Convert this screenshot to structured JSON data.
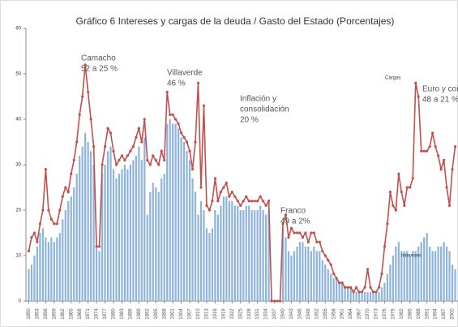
{
  "chart_data": {
    "type": "bar-line",
    "title": "Gráfico 6 Intereses y cargas de la deuda / Gasto del Estado (Porcentajes)",
    "x": [
      1850,
      1851,
      1852,
      1853,
      1854,
      1855,
      1856,
      1857,
      1858,
      1859,
      1860,
      1861,
      1862,
      1863,
      1864,
      1865,
      1866,
      1867,
      1868,
      1869,
      1870,
      1871,
      1872,
      1873,
      1874,
      1875,
      1876,
      1877,
      1878,
      1879,
      1880,
      1881,
      1882,
      1883,
      1884,
      1885,
      1886,
      1887,
      1888,
      1889,
      1890,
      1891,
      1892,
      1893,
      1894,
      1895,
      1896,
      1897,
      1898,
      1899,
      1900,
      1901,
      1902,
      1903,
      1904,
      1905,
      1906,
      1907,
      1908,
      1909,
      1910,
      1911,
      1912,
      1913,
      1914,
      1915,
      1916,
      1917,
      1918,
      1919,
      1920,
      1921,
      1922,
      1923,
      1924,
      1925,
      1926,
      1927,
      1928,
      1929,
      1930,
      1931,
      1932,
      1933,
      1934,
      1935,
      1936,
      1937,
      1938,
      1939,
      1940,
      1941,
      1942,
      1943,
      1944,
      1945,
      1946,
      1947,
      1948,
      1949,
      1950,
      1951,
      1952,
      1953,
      1954,
      1955,
      1956,
      1957,
      1958,
      1959,
      1960,
      1961,
      1962,
      1963,
      1964,
      1965,
      1966,
      1967,
      1968,
      1969,
      1970,
      1971,
      1972,
      1973,
      1974,
      1975,
      1976,
      1977,
      1978,
      1979,
      1980,
      1981,
      1982,
      1983,
      1984,
      1985,
      1986,
      1987,
      1988,
      1989,
      1990,
      1991,
      1992,
      1993,
      1994,
      1995,
      1996,
      1997,
      1998,
      1999,
      2000,
      2001
    ],
    "series": [
      {
        "name": "Intereses",
        "type": "bar",
        "color": "#8fb4dc",
        "values": [
          7,
          8,
          10,
          12,
          15,
          16,
          14,
          13,
          14,
          13,
          14,
          15,
          18,
          20,
          22,
          23,
          25,
          28,
          32,
          34,
          37,
          35,
          33,
          30,
          12,
          11,
          28,
          30,
          33,
          34,
          29,
          27,
          28,
          29,
          30,
          29,
          30,
          31,
          32,
          34,
          31,
          36,
          19,
          24,
          26,
          25,
          24,
          27,
          28,
          39,
          40,
          39,
          39,
          38,
          36,
          35,
          33,
          31,
          27,
          24,
          19,
          22,
          20,
          16,
          15,
          16,
          20,
          19,
          21,
          23,
          23,
          22,
          22,
          21,
          21,
          20,
          20,
          21,
          21,
          20,
          20,
          20,
          21,
          20,
          19,
          20,
          0,
          0,
          0,
          0,
          16,
          14,
          11,
          10,
          11,
          12,
          13,
          13,
          12,
          12,
          11,
          12,
          11,
          11,
          9,
          8,
          7,
          6,
          5,
          5,
          4,
          4,
          3,
          3,
          3,
          2,
          2,
          2,
          2,
          2,
          2,
          2,
          2,
          2,
          2,
          3,
          4,
          6,
          8,
          10,
          12,
          13,
          11,
          11,
          11,
          10,
          11,
          11,
          12,
          13,
          14,
          15,
          12,
          11,
          11,
          12,
          12,
          13,
          12,
          11,
          8,
          7
        ]
      },
      {
        "name": "Cargas",
        "type": "line",
        "color": "#c0504d",
        "values": [
          11,
          14,
          15,
          13,
          17,
          20,
          29,
          20,
          18,
          17,
          17,
          20,
          23,
          25,
          24,
          28,
          31,
          35,
          41,
          45,
          52,
          46,
          40,
          34,
          12,
          12,
          30,
          34,
          38,
          37,
          33,
          30,
          31,
          32,
          31,
          32,
          33,
          34,
          36,
          38,
          35,
          40,
          31,
          30,
          32,
          31,
          30,
          33,
          31,
          46,
          41,
          41,
          40,
          39,
          37,
          36,
          35,
          33,
          29,
          35,
          48,
          25,
          43,
          21,
          20,
          22,
          27,
          22,
          24,
          25,
          26,
          23,
          24,
          23,
          22,
          21,
          22,
          23,
          22,
          22,
          22,
          22,
          23,
          22,
          21,
          22,
          0,
          0,
          0,
          0,
          17,
          19,
          14,
          16,
          15,
          15,
          15,
          14,
          15,
          13,
          15,
          15,
          13,
          13,
          11,
          10,
          9,
          8,
          6,
          5,
          4,
          4,
          3,
          3,
          3,
          2,
          3,
          2,
          2,
          3,
          7,
          3,
          2,
          2,
          3,
          6,
          12,
          17,
          24,
          21,
          20,
          28,
          24,
          21,
          25,
          25,
          27,
          48,
          45,
          33,
          33,
          33,
          34,
          37,
          34,
          32,
          29,
          31,
          25,
          21,
          29,
          34
        ]
      }
    ],
    "annotations": [
      [
        "Camacho",
        "52 a 25 %"
      ],
      [
        "Villaverde",
        "46 %"
      ],
      [
        "Inflación y",
        "consolidación",
        "20 %"
      ],
      [
        "Franco",
        "49 a 2%"
      ],
      [
        "Euro y con",
        "48 a 21 %"
      ]
    ],
    "xlim": [
      1849,
      2002
    ],
    "xticks": [
      1850,
      1853,
      1856,
      1859,
      1862,
      1865,
      1868,
      1871,
      1874,
      1877,
      1880,
      1883,
      1886,
      1889,
      1892,
      1895,
      1898,
      1901,
      1904,
      1907,
      1910,
      1913,
      1916,
      1919,
      1922,
      1925,
      1928,
      1931,
      1934,
      1937,
      1940,
      1943,
      1946,
      1949,
      1952,
      1955,
      1958,
      1961,
      1964,
      1967,
      1970,
      1973,
      1976,
      1979,
      1982,
      1985,
      1988,
      1991,
      1994,
      1997,
      2000
    ],
    "ylim": [
      0,
      60
    ],
    "yticks": [
      0,
      10,
      20,
      30,
      40,
      50,
      60
    ]
  }
}
